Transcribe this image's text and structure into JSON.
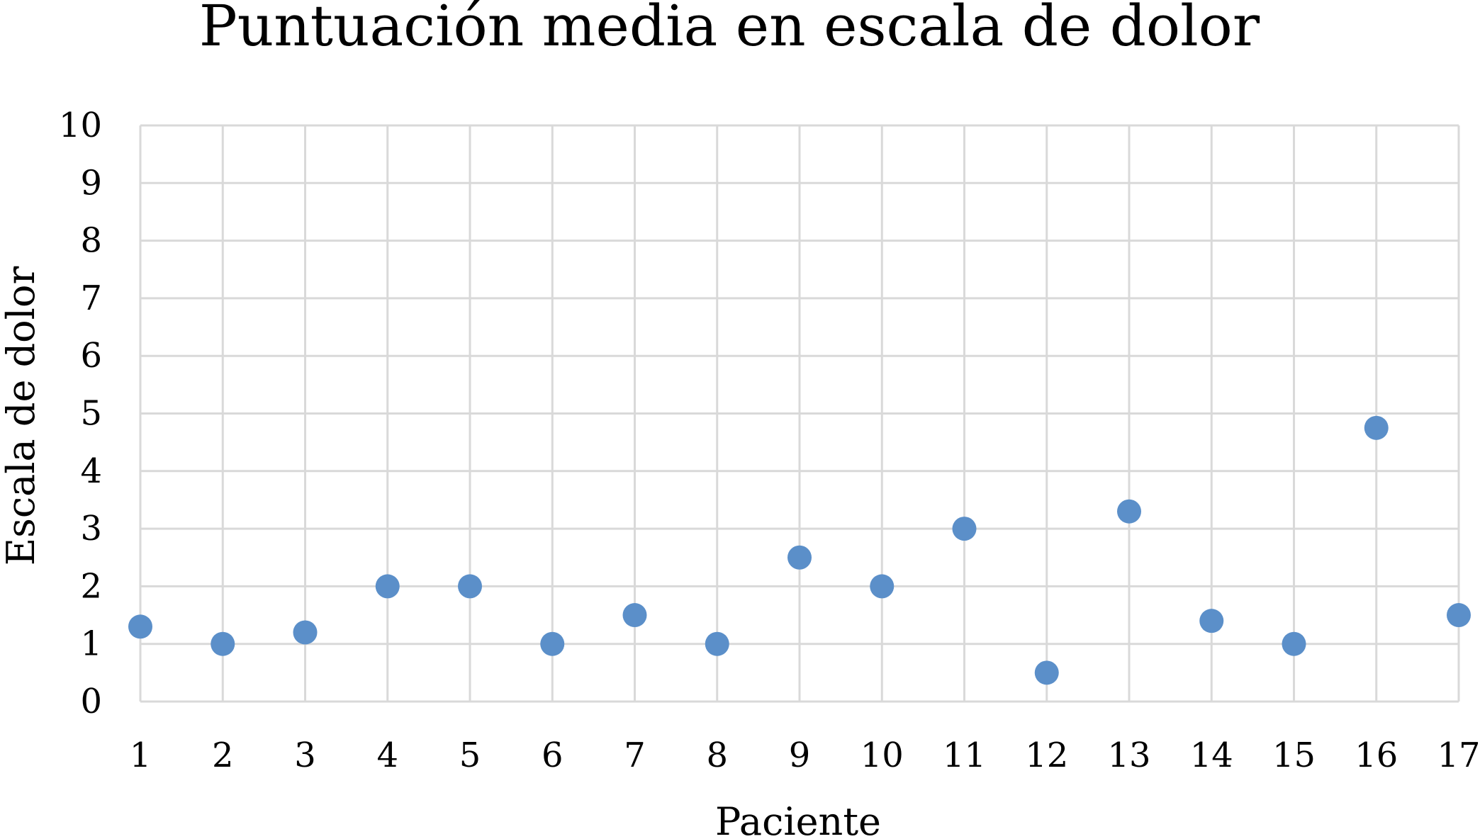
{
  "chart_data": {
    "type": "scatter",
    "title": "Puntuación media en escala de dolor",
    "xlabel": "Paciente",
    "ylabel": "Escala de dolor",
    "xlim": [
      1,
      17
    ],
    "ylim": [
      0,
      10
    ],
    "x_ticks": [
      1,
      2,
      3,
      4,
      5,
      6,
      7,
      8,
      9,
      10,
      11,
      12,
      13,
      14,
      15,
      16,
      17
    ],
    "y_ticks": [
      0,
      1,
      2,
      3,
      4,
      5,
      6,
      7,
      8,
      9,
      10
    ],
    "grid": true,
    "legend": "none",
    "series": [
      {
        "color": "#5b8fc9",
        "points": [
          {
            "x": 1,
            "y": 1.3
          },
          {
            "x": 2,
            "y": 1.0
          },
          {
            "x": 3,
            "y": 1.2
          },
          {
            "x": 4,
            "y": 2.0
          },
          {
            "x": 5,
            "y": 2.0
          },
          {
            "x": 6,
            "y": 1.0
          },
          {
            "x": 7,
            "y": 1.5
          },
          {
            "x": 8,
            "y": 1.0
          },
          {
            "x": 9,
            "y": 2.5
          },
          {
            "x": 10,
            "y": 2.0
          },
          {
            "x": 11,
            "y": 3.0
          },
          {
            "x": 12,
            "y": 0.5
          },
          {
            "x": 13,
            "y": 3.3
          },
          {
            "x": 14,
            "y": 1.4
          },
          {
            "x": 15,
            "y": 1.0
          },
          {
            "x": 16,
            "y": 4.75
          },
          {
            "x": 17,
            "y": 1.5
          }
        ]
      }
    ]
  }
}
